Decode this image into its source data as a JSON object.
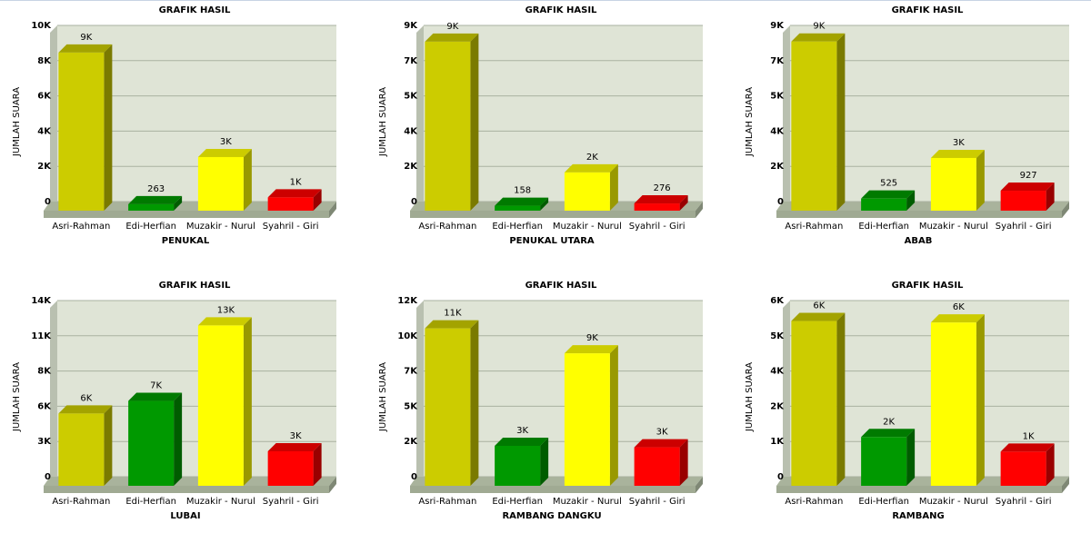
{
  "chart_data": [
    {
      "type": "bar",
      "title": "GRAFIK HASIL",
      "ylabel": "JUMLAH SUARA",
      "xlabel": "PENUKAL",
      "categories": [
        "Asri-Rahman",
        "Edi-Herfian",
        "Muzakir - Nurul",
        "Syahril - Giri"
      ],
      "colors": [
        "#cccc00",
        "#009900",
        "#ffff00",
        "#ff0000"
      ],
      "values": [
        8870,
        263,
        2940,
        650
      ],
      "value_labels": [
        "9K",
        "263",
        "3K",
        "1K"
      ],
      "ylim": [
        0,
        10000
      ],
      "yticks": [
        0,
        {
          "value": 2000,
          "label": "2K"
        },
        {
          "value": 4000,
          "label": "4K"
        },
        {
          "value": 6000,
          "label": "6K"
        },
        {
          "value": 8000,
          "label": "8K"
        },
        {
          "value": 10000,
          "label": "10K"
        }
      ],
      "grid": true
    },
    {
      "type": "bar",
      "title": "GRAFIK HASIL",
      "ylabel": "JUMLAH SUARA",
      "xlabel": "PENUKAL UTARA",
      "categories": [
        "Asri-Rahman",
        "Edi-Herfian",
        "Muzakir - Nurul",
        "Syahril - Giri"
      ],
      "colors": [
        "#cccc00",
        "#009900",
        "#ffff00",
        "#ff0000"
      ],
      "values": [
        8540,
        158,
        1860,
        276
      ],
      "value_labels": [
        "9K",
        "158",
        "2K",
        "276"
      ],
      "ylim": [
        0,
        9000
      ],
      "yticks": [
        0,
        {
          "value": 1800,
          "label": "2K"
        },
        {
          "value": 3600,
          "label": "4K"
        },
        {
          "value": 5400,
          "label": "5K"
        },
        {
          "value": 7200,
          "label": "7K"
        },
        {
          "value": 9000,
          "label": "9K"
        }
      ],
      "grid": true
    },
    {
      "type": "bar",
      "title": "GRAFIK HASIL",
      "ylabel": "JUMLAH SUARA",
      "xlabel": "ABAB",
      "categories": [
        "Asri-Rahman",
        "Edi-Herfian",
        "Muzakir - Nurul",
        "Syahril - Giri"
      ],
      "colors": [
        "#cccc00",
        "#009900",
        "#ffff00",
        "#ff0000"
      ],
      "values": [
        8550,
        525,
        2600,
        927
      ],
      "value_labels": [
        "9K",
        "525",
        "3K",
        "927"
      ],
      "ylim": [
        0,
        9000
      ],
      "yticks": [
        0,
        {
          "value": 1800,
          "label": "2K"
        },
        {
          "value": 3600,
          "label": "4K"
        },
        {
          "value": 5400,
          "label": "5K"
        },
        {
          "value": 7200,
          "label": "7K"
        },
        {
          "value": 9000,
          "label": "9K"
        }
      ],
      "grid": true
    },
    {
      "type": "bar",
      "title": "GRAFIK HASIL",
      "ylabel": "JUMLAH SUARA",
      "xlabel": "LUBAI",
      "categories": [
        "Asri-Rahman",
        "Edi-Herfian",
        "Muzakir - Nurul",
        "Syahril - Giri"
      ],
      "colors": [
        "#cccc00",
        "#009900",
        "#ffff00",
        "#ff0000"
      ],
      "values": [
        5600,
        6600,
        12600,
        2600
      ],
      "value_labels": [
        "6K",
        "7K",
        "13K",
        "3K"
      ],
      "ylim": [
        0,
        14000
      ],
      "yticks": [
        0,
        {
          "value": 2800,
          "label": "3K"
        },
        {
          "value": 5600,
          "label": "6K"
        },
        {
          "value": 8400,
          "label": "8K"
        },
        {
          "value": 11200,
          "label": "11K"
        },
        {
          "value": 14000,
          "label": "14K"
        }
      ],
      "grid": true
    },
    {
      "type": "bar",
      "title": "GRAFIK HASIL",
      "ylabel": "JUMLAH SUARA",
      "xlabel": "RAMBANG DANGKU",
      "categories": [
        "Asri-Rahman",
        "Edi-Herfian",
        "Muzakir - Nurul",
        "Syahril - Giri"
      ],
      "colors": [
        "#cccc00",
        "#009900",
        "#ffff00",
        "#ff0000"
      ],
      "values": [
        10600,
        2600,
        8900,
        2500
      ],
      "value_labels": [
        "11K",
        "3K",
        "9K",
        "3K"
      ],
      "ylim": [
        0,
        12000
      ],
      "yticks": [
        0,
        {
          "value": 2400,
          "label": "2K"
        },
        {
          "value": 4800,
          "label": "5K"
        },
        {
          "value": 7200,
          "label": "7K"
        },
        {
          "value": 9600,
          "label": "10K"
        },
        {
          "value": 12000,
          "label": "12K"
        }
      ],
      "grid": true
    },
    {
      "type": "bar",
      "title": "GRAFIK HASIL",
      "ylabel": "JUMLAH SUARA",
      "xlabel": "RAMBANG",
      "categories": [
        "Asri-Rahman",
        "Edi-Herfian",
        "Muzakir - Nurul",
        "Syahril - Giri"
      ],
      "colors": [
        "#cccc00",
        "#009900",
        "#ffff00",
        "#ff0000"
      ],
      "values": [
        5550,
        1600,
        5500,
        1100
      ],
      "value_labels": [
        "6K",
        "2K",
        "6K",
        "1K"
      ],
      "ylim": [
        0,
        6000
      ],
      "yticks": [
        0,
        {
          "value": 1200,
          "label": "1K"
        },
        {
          "value": 2400,
          "label": "2K"
        },
        {
          "value": 3600,
          "label": "4K"
        },
        {
          "value": 4800,
          "label": "5K"
        },
        {
          "value": 6000,
          "label": "6K"
        }
      ],
      "grid": true
    }
  ]
}
